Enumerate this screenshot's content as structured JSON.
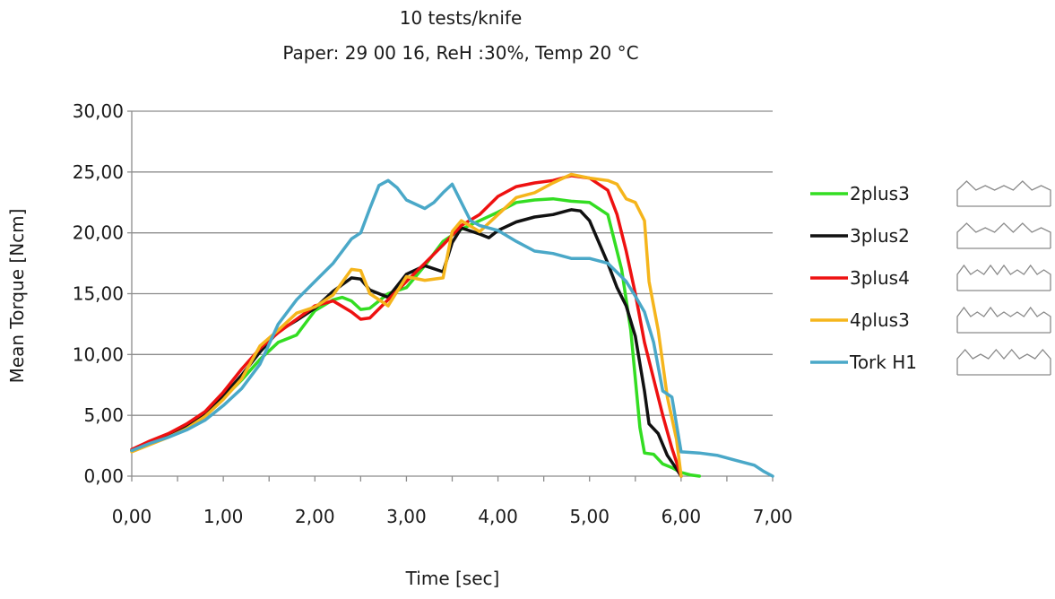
{
  "chart_data": {
    "type": "line",
    "title": "10 tests/knife",
    "subtitle": "Paper: 29 00 16, ReH :30%, Temp 20 °C",
    "xlabel": "Time [sec]",
    "ylabel": "Mean Torque [Ncm]",
    "xlim": [
      0,
      7
    ],
    "ylim": [
      0,
      30
    ],
    "xticks": [
      0,
      1,
      2,
      3,
      4,
      5,
      6,
      7
    ],
    "yticks": [
      0,
      5,
      10,
      15,
      20,
      25,
      30
    ],
    "xtick_labels": [
      "0,00",
      "1,00",
      "2,00",
      "3,00",
      "4,00",
      "5,00",
      "6,00",
      "7,00"
    ],
    "ytick_labels": [
      "0,00",
      "5,00",
      "10,00",
      "15,00",
      "20,00",
      "25,00",
      "30,00"
    ],
    "grid": "horizontal",
    "legend_position": "right",
    "series": [
      {
        "name": "2plus3",
        "color": "#33dd22",
        "x": [
          0,
          0.2,
          0.4,
          0.6,
          0.8,
          1.0,
          1.2,
          1.4,
          1.6,
          1.8,
          2.0,
          2.2,
          2.3,
          2.4,
          2.5,
          2.6,
          2.8,
          3.0,
          3.2,
          3.4,
          3.6,
          3.8,
          4.0,
          4.2,
          4.4,
          4.6,
          4.8,
          5.0,
          5.2,
          5.35,
          5.45,
          5.55,
          5.6,
          5.7,
          5.8,
          5.9,
          6.0,
          6.1,
          6.2
        ],
        "y": [
          2.1,
          2.7,
          3.3,
          4.0,
          5.0,
          6.4,
          7.9,
          9.6,
          11.0,
          11.6,
          13.6,
          14.5,
          14.7,
          14.4,
          13.7,
          13.8,
          15.0,
          15.5,
          17.3,
          19.3,
          20.3,
          21.0,
          21.7,
          22.5,
          22.7,
          22.8,
          22.6,
          22.5,
          21.5,
          17.0,
          12.0,
          4.0,
          1.9,
          1.8,
          1.0,
          0.7,
          0.3,
          0.1,
          0.0
        ]
      },
      {
        "name": "3plus2",
        "color": "#111111",
        "x": [
          0,
          0.2,
          0.4,
          0.6,
          0.8,
          1.0,
          1.2,
          1.4,
          1.6,
          1.8,
          2.0,
          2.2,
          2.4,
          2.5,
          2.6,
          2.8,
          3.0,
          3.2,
          3.4,
          3.5,
          3.6,
          3.8,
          3.9,
          4.0,
          4.2,
          4.4,
          4.6,
          4.8,
          4.9,
          5.0,
          5.2,
          5.3,
          5.4,
          5.5,
          5.6,
          5.65,
          5.75,
          5.85,
          5.95,
          6.0
        ],
        "y": [
          2.1,
          2.8,
          3.4,
          4.2,
          5.2,
          6.6,
          8.3,
          10.2,
          11.9,
          12.8,
          13.8,
          15.2,
          16.3,
          16.2,
          15.3,
          14.7,
          16.6,
          17.3,
          16.8,
          19.2,
          20.4,
          19.9,
          19.6,
          20.2,
          20.9,
          21.3,
          21.5,
          21.9,
          21.8,
          21.0,
          17.5,
          15.5,
          14.0,
          11.5,
          7.0,
          4.3,
          3.5,
          1.7,
          0.6,
          0.0
        ]
      },
      {
        "name": "3plus4",
        "color": "#ee1111",
        "x": [
          0,
          0.2,
          0.4,
          0.6,
          0.8,
          1.0,
          1.2,
          1.4,
          1.6,
          1.8,
          2.0,
          2.2,
          2.4,
          2.5,
          2.6,
          2.8,
          3.0,
          3.2,
          3.4,
          3.6,
          3.8,
          4.0,
          4.2,
          4.4,
          4.6,
          4.8,
          5.0,
          5.2,
          5.3,
          5.4,
          5.5,
          5.6,
          5.7,
          5.8,
          5.9,
          6.0
        ],
        "y": [
          2.2,
          2.9,
          3.5,
          4.3,
          5.3,
          6.9,
          8.8,
          10.5,
          11.8,
          12.9,
          14.0,
          14.4,
          13.5,
          12.9,
          13.0,
          14.5,
          16.0,
          17.5,
          19.0,
          20.6,
          21.5,
          23.0,
          23.8,
          24.1,
          24.3,
          24.7,
          24.5,
          23.5,
          21.5,
          18.5,
          15.0,
          11.0,
          8.0,
          5.0,
          2.3,
          0.0
        ]
      },
      {
        "name": "4plus3",
        "color": "#f5b51c",
        "x": [
          0,
          0.2,
          0.4,
          0.6,
          0.8,
          1.0,
          1.2,
          1.4,
          1.6,
          1.8,
          2.0,
          2.2,
          2.4,
          2.5,
          2.6,
          2.8,
          3.0,
          3.2,
          3.4,
          3.5,
          3.6,
          3.8,
          4.0,
          4.2,
          4.4,
          4.6,
          4.8,
          5.0,
          5.2,
          5.3,
          5.4,
          5.5,
          5.6,
          5.65,
          5.75,
          5.85,
          5.95,
          6.0
        ],
        "y": [
          2.0,
          2.6,
          3.2,
          3.9,
          4.9,
          6.3,
          8.0,
          10.7,
          12.0,
          13.4,
          13.9,
          14.9,
          17.0,
          16.9,
          15.0,
          14.0,
          16.4,
          16.1,
          16.3,
          20.1,
          21.0,
          20.1,
          21.5,
          22.9,
          23.3,
          24.1,
          24.8,
          24.5,
          24.3,
          24.0,
          22.8,
          22.5,
          21.0,
          16.0,
          12.0,
          6.5,
          3.0,
          0.0
        ]
      },
      {
        "name": "Tork H1",
        "color": "#4aa8c8",
        "x": [
          0,
          0.2,
          0.4,
          0.6,
          0.8,
          1.0,
          1.2,
          1.4,
          1.6,
          1.8,
          2.0,
          2.2,
          2.4,
          2.5,
          2.6,
          2.7,
          2.8,
          2.9,
          3.0,
          3.2,
          3.3,
          3.4,
          3.5,
          3.6,
          3.7,
          3.8,
          4.0,
          4.2,
          4.4,
          4.6,
          4.8,
          5.0,
          5.2,
          5.4,
          5.5,
          5.6,
          5.7,
          5.8,
          5.9,
          6.0,
          6.2,
          6.4,
          6.6,
          6.8,
          6.9,
          7.0
        ],
        "y": [
          2.1,
          2.7,
          3.2,
          3.8,
          4.6,
          5.8,
          7.2,
          9.2,
          12.5,
          14.5,
          16.0,
          17.5,
          19.5,
          20.0,
          22.0,
          23.9,
          24.3,
          23.7,
          22.7,
          22.0,
          22.5,
          23.3,
          24.0,
          22.5,
          21.0,
          20.6,
          20.2,
          19.3,
          18.5,
          18.3,
          17.9,
          17.9,
          17.5,
          16.0,
          14.8,
          13.5,
          11.0,
          7.0,
          6.5,
          2.0,
          1.9,
          1.7,
          1.3,
          0.9,
          0.4,
          0.0
        ]
      }
    ]
  }
}
